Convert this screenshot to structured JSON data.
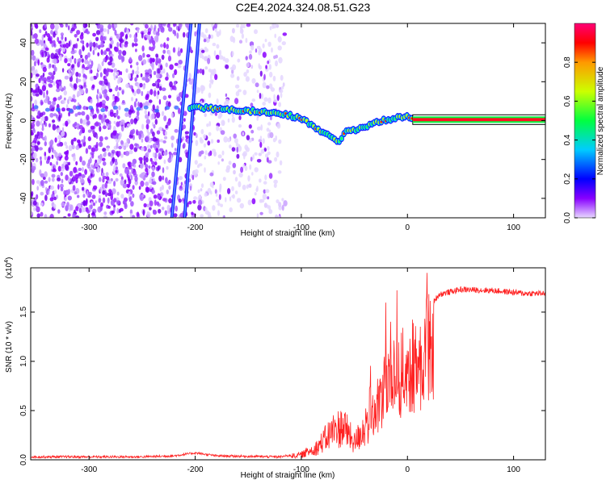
{
  "title": "C2E4.2024.324.08.51.G23",
  "chart_data": [
    {
      "type": "heatmap",
      "xlabel": "Height of straight line (km)",
      "ylabel": "Frequency (Hz)",
      "xlim": [
        -355,
        130
      ],
      "ylim": [
        -50,
        50
      ],
      "xticks": [
        -300,
        -200,
        -100,
        0,
        100
      ],
      "xtick_labels": [
        "-300",
        "-200",
        "-100",
        "0",
        "100"
      ],
      "yticks": [
        -40,
        -20,
        0,
        20,
        40
      ],
      "ytick_labels": [
        "-40",
        "-20",
        "0",
        "20",
        "40"
      ],
      "colorbar": {
        "label": "Normalized spectral amplitude",
        "range": [
          0,
          1
        ],
        "ticks": [
          0.0,
          0.2,
          0.4,
          0.6,
          0.8
        ],
        "tick_labels": [
          "0.0",
          "0.2",
          "0.4",
          "0.6",
          "0.8"
        ]
      },
      "ridge": [
        {
          "x": -205,
          "y": 7
        },
        {
          "x": -180,
          "y": 6
        },
        {
          "x": -150,
          "y": 5
        },
        {
          "x": -120,
          "y": 4
        },
        {
          "x": -100,
          "y": 1
        },
        {
          "x": -85,
          "y": -4
        },
        {
          "x": -70,
          "y": -9
        },
        {
          "x": -63,
          "y": -11
        },
        {
          "x": -58,
          "y": -5
        },
        {
          "x": -50,
          "y": -5
        },
        {
          "x": -40,
          "y": -3
        },
        {
          "x": -30,
          "y": -1
        },
        {
          "x": -15,
          "y": 1
        },
        {
          "x": 0,
          "y": 2
        },
        {
          "x": 5,
          "y": 1
        },
        {
          "x": 130,
          "y": 0.5
        }
      ],
      "steep_streaks": [
        {
          "x1": -222,
          "y1": -50,
          "x2": -204,
          "y2": 50
        },
        {
          "x1": -210,
          "y1": -50,
          "x2": -196,
          "y2": 50
        }
      ],
      "grid": false
    },
    {
      "type": "line",
      "xlabel": "Height of straight line (km)",
      "ylabel": "SNR (10 * v/v)",
      "y_multiplier": "(x10",
      "y_exponent": "4",
      "xlim": [
        -355,
        130
      ],
      "ylim": [
        0,
        1.95
      ],
      "xticks": [
        -300,
        -200,
        -100,
        0,
        100
      ],
      "xtick_labels": [
        "-300",
        "-200",
        "-100",
        "0",
        "100"
      ],
      "yticks": [
        0,
        0.5,
        1.0,
        1.5
      ],
      "ytick_labels": [
        "0.0",
        "0.5",
        "1.0",
        "1.5"
      ],
      "color": "#ff2222",
      "series_envelope": [
        {
          "x": -355,
          "y": 0.03
        },
        {
          "x": -250,
          "y": 0.03
        },
        {
          "x": -220,
          "y": 0.04
        },
        {
          "x": -200,
          "y": 0.07
        },
        {
          "x": -180,
          "y": 0.04
        },
        {
          "x": -120,
          "y": 0.03
        },
        {
          "x": -100,
          "y": 0.06
        },
        {
          "x": -85,
          "y": 0.15
        },
        {
          "x": -70,
          "y": 0.35
        },
        {
          "x": -60,
          "y": 0.4
        },
        {
          "x": -50,
          "y": 0.2
        },
        {
          "x": -40,
          "y": 0.4
        },
        {
          "x": -30,
          "y": 0.7
        },
        {
          "x": -20,
          "y": 1.05
        },
        {
          "x": -10,
          "y": 1.2
        },
        {
          "x": 0,
          "y": 1.25
        },
        {
          "x": 10,
          "y": 1.35
        },
        {
          "x": 20,
          "y": 1.55
        },
        {
          "x": 30,
          "y": 1.68
        },
        {
          "x": 50,
          "y": 1.73
        },
        {
          "x": 80,
          "y": 1.72
        },
        {
          "x": 110,
          "y": 1.69
        },
        {
          "x": 130,
          "y": 1.69
        }
      ],
      "grid": false
    }
  ]
}
